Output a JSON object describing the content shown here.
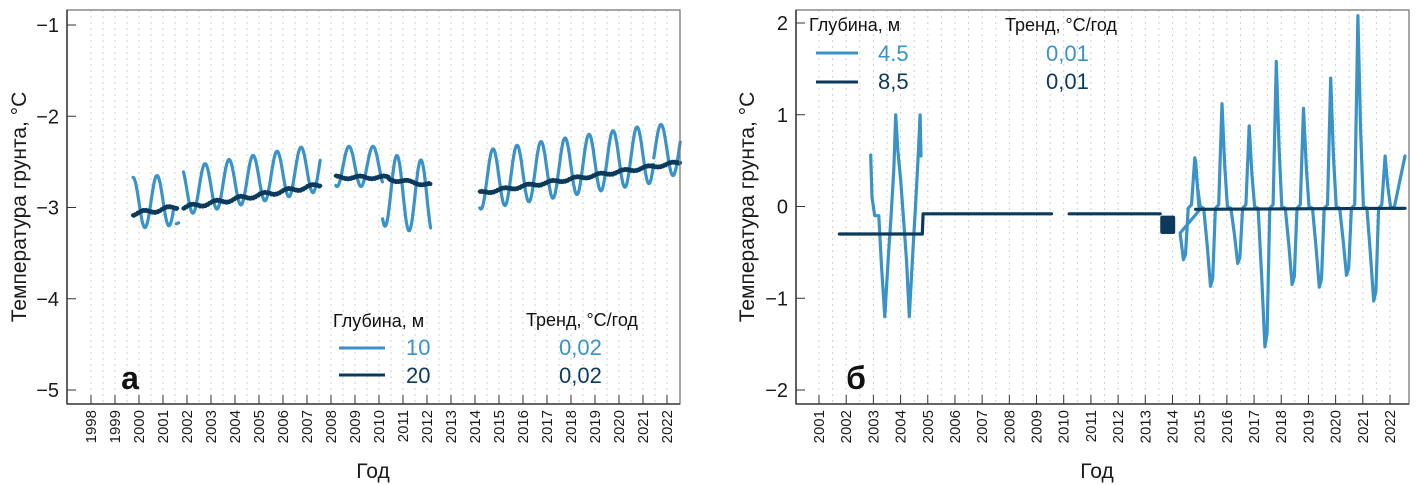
{
  "colors": {
    "light": "#3a93c6",
    "dark": "#0b3a5c"
  },
  "chart_data": [
    {
      "panel": "а",
      "type": "line",
      "xlabel": "Год",
      "ylabel": "Температура грунта, °C",
      "xlim": [
        1997.6,
        2023.0
      ],
      "ylim": [
        -5.15,
        -0.85
      ],
      "yticks": [
        -1,
        -2,
        -3,
        -4,
        -5
      ],
      "ytick_labels": [
        "−1",
        "−2",
        "−3",
        "−4",
        "−5"
      ],
      "xticks": [
        1998,
        1999,
        2000,
        2001,
        2002,
        2003,
        2004,
        2005,
        2006,
        2007,
        2008,
        2009,
        2010,
        2011,
        2012,
        2013,
        2014,
        2015,
        2016,
        2017,
        2018,
        2019,
        2020,
        2021,
        2022
      ],
      "legend": {
        "depth_title": "Глубина, м",
        "trend_title": "Тренд, °C/год",
        "position": "bottom-right",
        "entries": [
          {
            "depth": "10",
            "trend": "0,02",
            "color_key": "light"
          },
          {
            "depth": "20",
            "trend": "0,02",
            "color_key": "dark"
          }
        ]
      },
      "series": [
        {
          "name": "10",
          "color_key": "light",
          "segments": [
            {
              "x0": 1999.75,
              "x1": 2001.45,
              "mean": -2.95,
              "amp": 0.28,
              "phase": 0.75,
              "trend": 0.02
            },
            {
              "x0": 2001.55,
              "x1": 2001.65,
              "mean": -3.15,
              "amp": 0.03,
              "phase": 0.0,
              "trend": 0.0
            },
            {
              "x0": 2001.85,
              "x1": 2007.55,
              "mean": -2.82,
              "amp": 0.26,
              "phase": 0.75,
              "trend": 0.045
            },
            {
              "x0": 2008.2,
              "x1": 2010.15,
              "mean": -2.55,
              "amp": 0.22,
              "phase": 0.75,
              "trend": 0.0
            },
            {
              "x0": 2010.15,
              "x1": 2012.15,
              "mean": -2.8,
              "amp": 0.4,
              "phase": 0.75,
              "trend": -0.05
            },
            {
              "x0": 2014.2,
              "x1": 2021.45,
              "mean": -2.7,
              "amp": 0.32,
              "phase": 0.75,
              "trend": 0.04
            },
            {
              "x0": 2021.45,
              "x1": 2022.55,
              "mean": -2.37,
              "amp": 0.28,
              "phase": 0.75,
              "trend": 0.0
            }
          ]
        },
        {
          "name": "20",
          "color_key": "dark",
          "segments": [
            {
              "x0": 1999.75,
              "x1": 2001.6,
              "mean": -3.07,
              "amp": 0.02,
              "phase": 0.2,
              "trend": 0.04
            },
            {
              "x0": 2001.85,
              "x1": 2007.55,
              "mean": -3.0,
              "amp": 0.02,
              "phase": 0.2,
              "trend": 0.043
            },
            {
              "x0": 2008.2,
              "x1": 2010.4,
              "mean": -2.67,
              "amp": 0.015,
              "phase": 0.2,
              "trend": 0.0
            },
            {
              "x0": 2010.4,
              "x1": 2012.15,
              "mean": -2.69,
              "amp": 0.015,
              "phase": 0.2,
              "trend": -0.035
            },
            {
              "x0": 2014.2,
              "x1": 2022.55,
              "mean": -2.84,
              "amp": 0.015,
              "phase": 0.2,
              "trend": 0.04
            }
          ]
        }
      ]
    },
    {
      "panel": "б",
      "type": "line",
      "xlabel": "Год",
      "ylabel": "Температура грунта, °C",
      "xlim": [
        2000.65,
        2023.15
      ],
      "ylim": [
        -2.15,
        2.15
      ],
      "yticks": [
        2,
        1,
        0,
        -1,
        -2
      ],
      "ytick_labels": [
        "2",
        "1",
        "0",
        "−1",
        "−2"
      ],
      "xticks": [
        2001,
        2002,
        2003,
        2004,
        2005,
        2006,
        2007,
        2008,
        2009,
        2010,
        2011,
        2012,
        2013,
        2014,
        2015,
        2016,
        2017,
        2018,
        2019,
        2020,
        2021,
        2022
      ],
      "legend": {
        "depth_title": "Глубина, м",
        "trend_title": "Тренд, °C/год",
        "position": "top-left",
        "entries": [
          {
            "depth": "4.5",
            "trend": "0,01",
            "color_key": "light"
          },
          {
            "depth": "8,5",
            "trend": "0,01",
            "color_key": "dark"
          }
        ]
      },
      "series": [
        {
          "name": "4.5",
          "color_key": "light",
          "points": [
            [
              2002.9,
              0.56
            ],
            [
              2002.95,
              0.1
            ],
            [
              2003.05,
              -0.1
            ],
            [
              2003.2,
              -0.1
            ],
            [
              2003.3,
              -0.65
            ],
            [
              2003.42,
              -1.2
            ],
            [
              2003.55,
              -0.55
            ],
            [
              2003.65,
              -0.1
            ],
            [
              2003.75,
              0.4
            ],
            [
              2003.82,
              1.0
            ],
            [
              2003.9,
              0.6
            ],
            [
              2004.0,
              0.3
            ],
            [
              2004.1,
              -0.1
            ],
            [
              2004.22,
              -0.6
            ],
            [
              2004.32,
              -1.2
            ],
            [
              2004.45,
              -0.5
            ],
            [
              2004.55,
              0.0
            ],
            [
              2004.65,
              0.55
            ],
            [
              2004.72,
              1.0
            ],
            [
              2004.75,
              0.55
            ]
          ],
          "seasonal": {
            "x0": 2014.85,
            "x1": 2022.55,
            "start": 0.5,
            "years": [
              {
                "max": 0.53,
                "min": -0.58
              },
              {
                "max": 1.12,
                "min": -0.87
              },
              {
                "max": 0.88,
                "min": -0.62
              },
              {
                "max": 1.58,
                "min": -1.53
              },
              {
                "max": 1.07,
                "min": -0.85
              },
              {
                "max": 1.4,
                "min": -0.88
              },
              {
                "max": 2.08,
                "min": -0.75
              },
              {
                "max": 0.55,
                "min": -1.03
              }
            ]
          }
        },
        {
          "name": "8,5",
          "color_key": "dark",
          "points_segments": [
            [
              [
                2001.75,
                -0.3
              ],
              [
                2004.8,
                -0.3
              ],
              [
                2004.83,
                -0.08
              ],
              [
                2009.55,
                -0.08
              ]
            ],
            [
              [
                2010.2,
                -0.08
              ],
              [
                2013.55,
                -0.08
              ]
            ],
            [
              [
                2014.85,
                -0.03
              ],
              [
                2022.55,
                -0.02
              ]
            ]
          ],
          "block": {
            "x0": 2013.55,
            "x1": 2014.1,
            "y0": -0.1,
            "y1": -0.3
          }
        }
      ]
    }
  ]
}
